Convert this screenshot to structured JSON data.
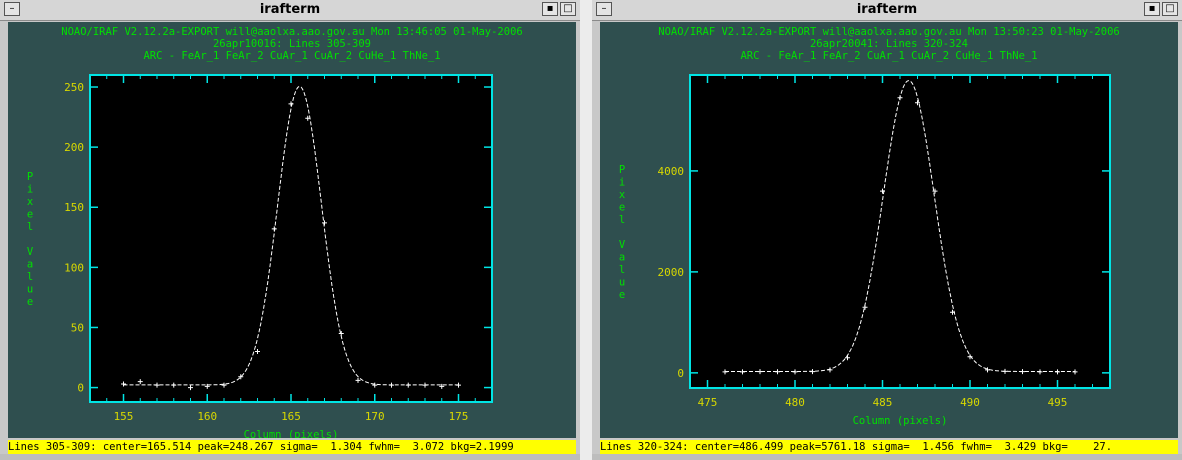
{
  "windows": [
    {
      "title": "irafterm",
      "header": [
        "NOAO/IRAF V2.12.2a-EXPORT will@aaolxa.aao.gov.au Mon 13:46:05 01-May-2006",
        "26apr10016: Lines 305-309",
        "ARC - FeAr_1 FeAr_2 CuAr_1 CuAr_2 CuHe_1 ThNe_1"
      ],
      "status": "Lines 305-309: center=165.514 peak=248.267 sigma=  1.304 fwhm=  3.072 bkg=2.1999",
      "colors": {
        "axis": "#00e5e5",
        "ticklabel": "#d8d800",
        "label": "#00e000",
        "curve": "#ffffff"
      },
      "chart_data": {
        "type": "scatter",
        "xlabel": "Column (pixels)",
        "ylabel": "Pixel Value",
        "xlim": [
          153,
          177
        ],
        "ylim": [
          -12,
          260
        ],
        "xticks": [
          155,
          160,
          165,
          170,
          175
        ],
        "yticks": [
          0,
          50,
          100,
          150,
          200,
          250
        ],
        "fit": {
          "center": 165.514,
          "peak": 248.267,
          "sigma": 1.304,
          "bkg": 2.1999
        },
        "points": [
          [
            155,
            3
          ],
          [
            156,
            5
          ],
          [
            157,
            2
          ],
          [
            158,
            2
          ],
          [
            159,
            0
          ],
          [
            160,
            1
          ],
          [
            161,
            2
          ],
          [
            162,
            9
          ],
          [
            163,
            30
          ],
          [
            164,
            132
          ],
          [
            165,
            236
          ],
          [
            166,
            224
          ],
          [
            167,
            137
          ],
          [
            168,
            45
          ],
          [
            169,
            6
          ],
          [
            170,
            2
          ],
          [
            171,
            2
          ],
          [
            172,
            2
          ],
          [
            173,
            2
          ],
          [
            174,
            1
          ],
          [
            175,
            2
          ]
        ]
      }
    },
    {
      "title": "irafterm",
      "header": [
        "NOAO/IRAF V2.12.2a-EXPORT will@aaolxa.aao.gov.au Mon 13:50:23 01-May-2006",
        "26apr20041: Lines 320-324",
        "ARC - FeAr_1 FeAr_2 CuAr_1 CuAr_2 CuHe_1 ThNe_1"
      ],
      "status": "Lines 320-324: center=486.499 peak=5761.18 sigma=  1.456 fwhm=  3.429 bkg=    27.",
      "colors": {
        "axis": "#00e5e5",
        "ticklabel": "#d8d800",
        "label": "#00e000",
        "curve": "#ffffff"
      },
      "chart_data": {
        "type": "scatter",
        "xlabel": "Column (pixels)",
        "ylabel": "Pixel Value",
        "xlim": [
          474,
          498
        ],
        "ylim": [
          -300,
          5900
        ],
        "xticks": [
          475,
          480,
          485,
          490,
          495
        ],
        "yticks": [
          0,
          2000,
          4000
        ],
        "fit": {
          "center": 486.499,
          "peak": 5761.18,
          "sigma": 1.456,
          "bkg": 27
        },
        "points": [
          [
            476,
            20
          ],
          [
            477,
            20
          ],
          [
            478,
            25
          ],
          [
            479,
            22
          ],
          [
            480,
            20
          ],
          [
            481,
            25
          ],
          [
            482,
            60
          ],
          [
            483,
            300
          ],
          [
            484,
            1300
          ],
          [
            485,
            3600
          ],
          [
            486,
            5450
          ],
          [
            487,
            5350
          ],
          [
            488,
            3600
          ],
          [
            489,
            1200
          ],
          [
            490,
            320
          ],
          [
            491,
            60
          ],
          [
            492,
            30
          ],
          [
            493,
            25
          ],
          [
            494,
            20
          ],
          [
            495,
            20
          ],
          [
            496,
            20
          ]
        ]
      }
    }
  ]
}
